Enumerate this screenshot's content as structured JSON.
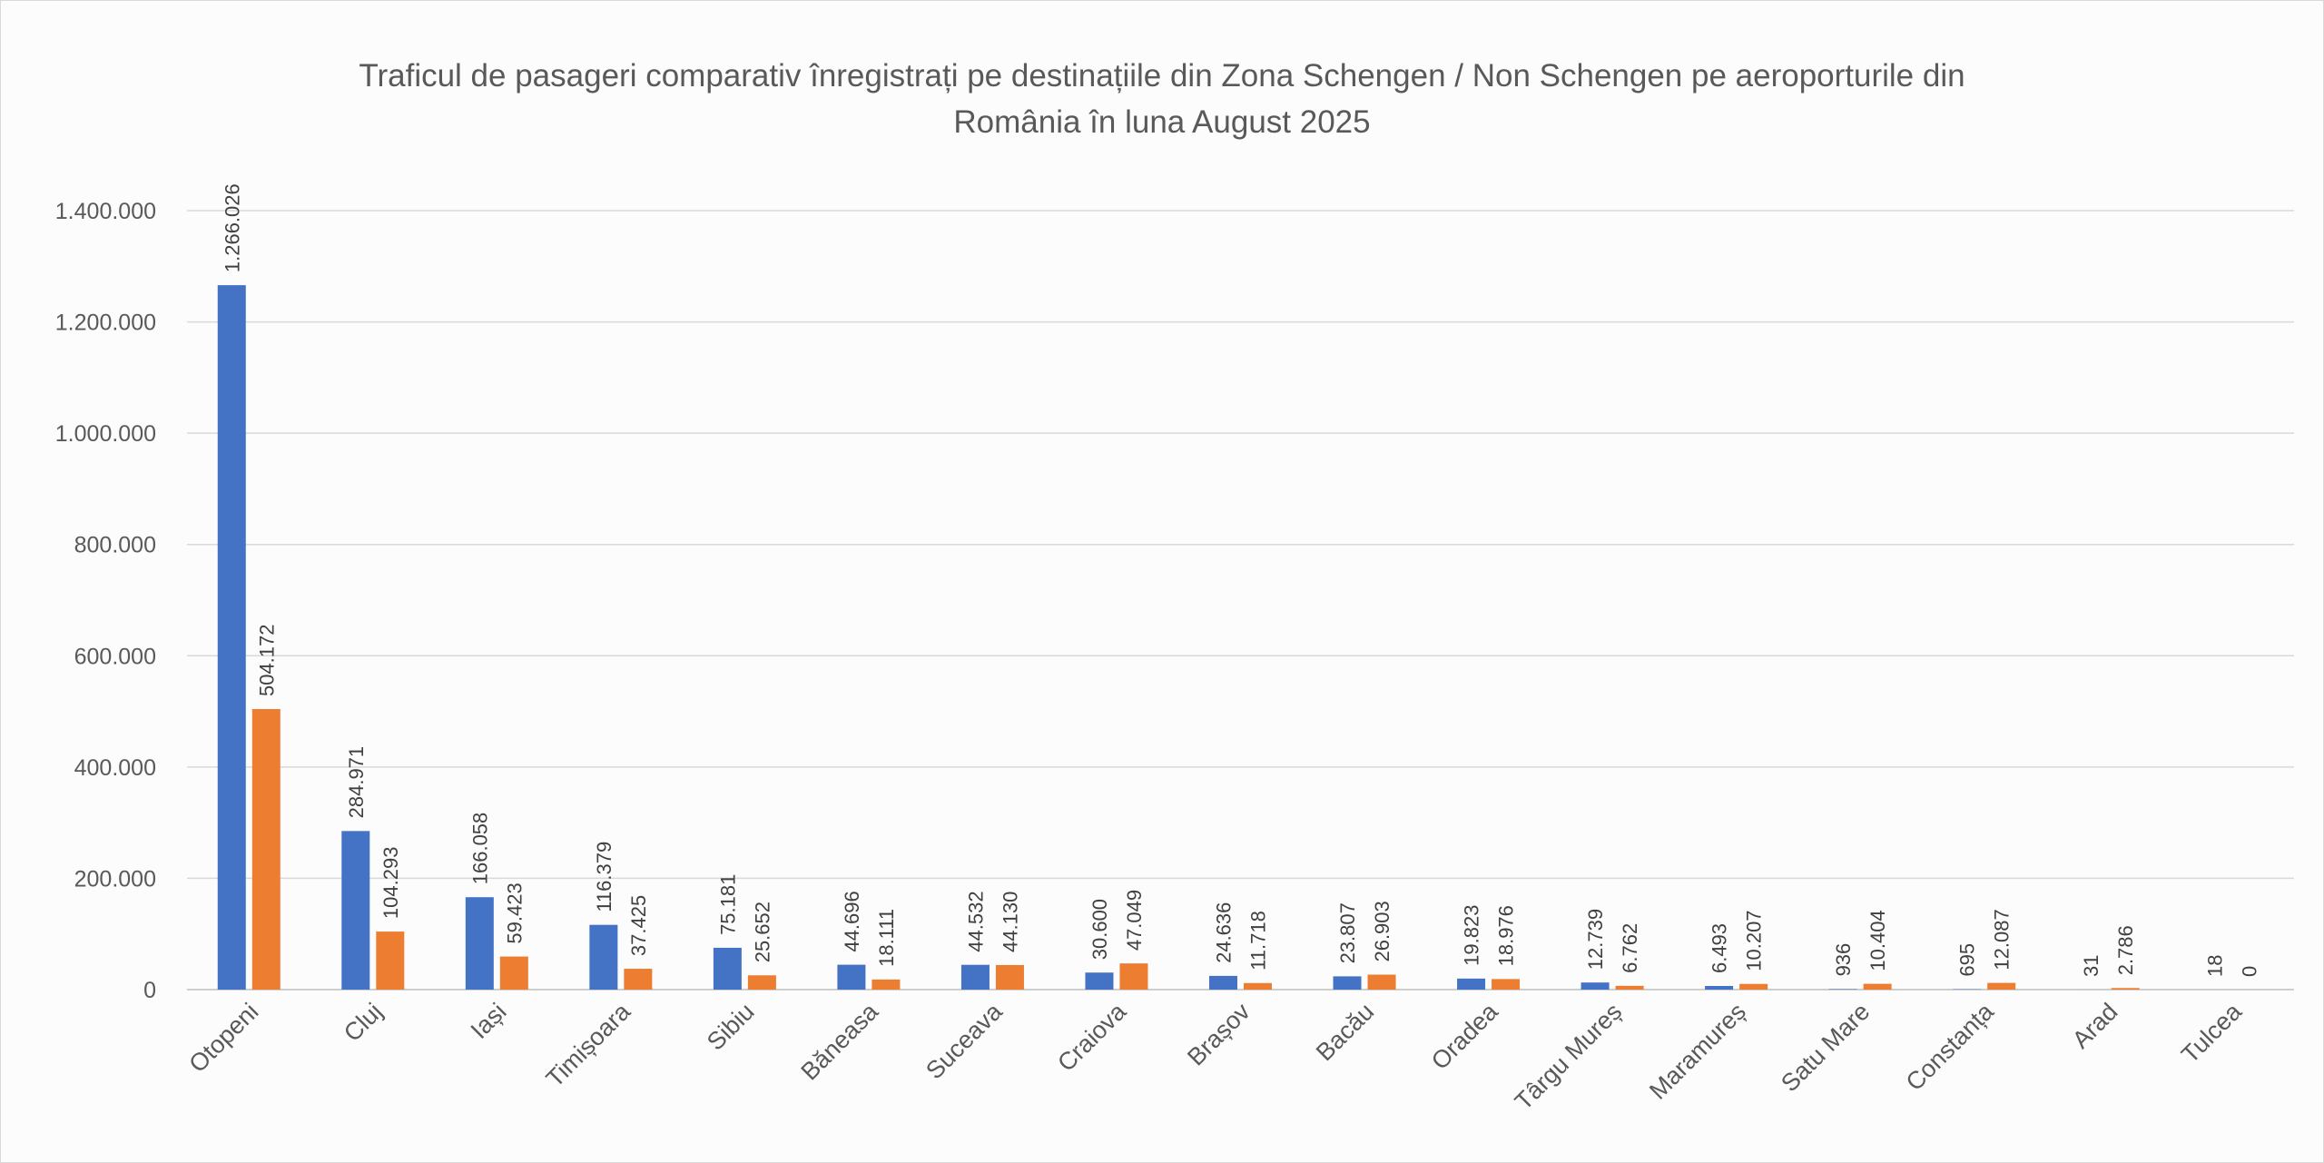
{
  "chart_data": {
    "type": "bar",
    "title_lines": [
      "Traficul de pasageri comparativ înregistrați pe destinațiile din Zona Schengen / Non Schengen pe aeroporturile din",
      "România în luna August 2025"
    ],
    "categories": [
      "Otopeni",
      "Cluj",
      "Iași",
      "Timișoara",
      "Sibiu",
      "Băneasa",
      "Suceava",
      "Craiova",
      "Brașov",
      "Bacău",
      "Oradea",
      "Târgu Mureș",
      "Maramureș",
      "Satu Mare",
      "Constanța",
      "Arad",
      "Tulcea"
    ],
    "series": [
      {
        "color": "#4472c4",
        "values": [
          1266026,
          284971,
          166058,
          116379,
          75181,
          44696,
          44532,
          30600,
          24636,
          23807,
          19823,
          12739,
          6493,
          936,
          695,
          31,
          18
        ],
        "labels": [
          "1.266.026",
          "284.971",
          "166.058",
          "116.379",
          "75.181",
          "44.696",
          "44.532",
          "30.600",
          "24.636",
          "23.807",
          "19.823",
          "12.739",
          "6.493",
          "936",
          "695",
          "31",
          "18"
        ]
      },
      {
        "color": "#ed7d31",
        "values": [
          504172,
          104293,
          59423,
          37425,
          25652,
          18111,
          44130,
          47049,
          11718,
          26903,
          18976,
          6762,
          10207,
          10404,
          12087,
          2786,
          0
        ],
        "labels": [
          "504.172",
          "104.293",
          "59.423",
          "37.425",
          "25.652",
          "18.111",
          "44.130",
          "47.049",
          "11.718",
          "26.903",
          "18.976",
          "6.762",
          "10.207",
          "10.404",
          "12.087",
          "2.786",
          "0"
        ]
      }
    ],
    "ylim": [
      0,
      1400000
    ],
    "yticks": [
      0,
      200000,
      400000,
      600000,
      800000,
      1000000,
      1200000,
      1400000
    ],
    "ytick_labels": [
      "0",
      "200.000",
      "400.000",
      "600.000",
      "800.000",
      "1.000.000",
      "1.200.000",
      "1.400.000"
    ],
    "grid": true,
    "legend": "none"
  }
}
